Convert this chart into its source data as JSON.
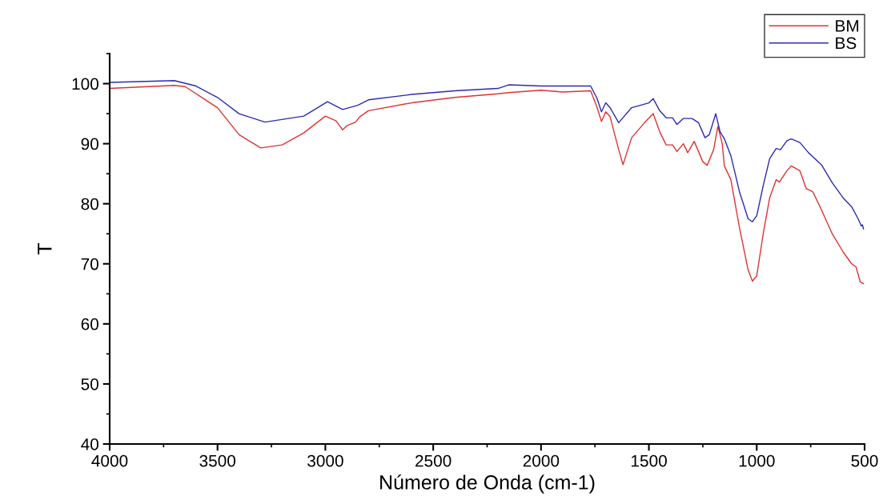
{
  "chart_data": {
    "type": "line",
    "xlabel": "Número de Onda (cm-1)",
    "ylabel": "T",
    "xlim": [
      4000,
      500
    ],
    "xticks": [
      4000,
      3500,
      3000,
      2500,
      2000,
      1500,
      1000,
      500
    ],
    "ylim": [
      40,
      105
    ],
    "yticks": [
      40,
      50,
      60,
      70,
      80,
      90,
      100
    ],
    "grid": false,
    "legend": "top right",
    "marker": "none",
    "line_style": "solid",
    "series": [
      {
        "name": "BM",
        "color": "#e03232",
        "x": [
          4000,
          3700,
          3650,
          3500,
          3400,
          3300,
          3200,
          3100,
          3000,
          2950,
          2920,
          2900,
          2860,
          2840,
          2800,
          2600,
          2400,
          2200,
          2150,
          2000,
          1900,
          1770,
          1740,
          1720,
          1700,
          1680,
          1640,
          1620,
          1580,
          1520,
          1480,
          1450,
          1420,
          1390,
          1370,
          1340,
          1320,
          1290,
          1250,
          1230,
          1200,
          1180,
          1160,
          1150,
          1120,
          1080,
          1040,
          1020,
          1000,
          970,
          940,
          910,
          895,
          860,
          840,
          800,
          770,
          740,
          700,
          650,
          600,
          560,
          540,
          520,
          505
        ],
        "values": [
          99.2,
          99.7,
          99.5,
          96,
          91.5,
          89.3,
          89.8,
          91.8,
          94.6,
          93.8,
          92.3,
          93,
          93.6,
          94.5,
          95.5,
          96.8,
          97.7,
          98.3,
          98.5,
          98.9,
          98.6,
          98.8,
          96,
          93.7,
          95.3,
          94.5,
          89,
          86.5,
          91,
          93.5,
          95,
          92,
          89.8,
          89.8,
          88.7,
          90,
          88.5,
          90.4,
          87,
          86.4,
          89,
          92.9,
          90,
          86.3,
          84,
          76,
          69,
          67.1,
          68,
          75,
          81,
          84,
          83.6,
          85.5,
          86.3,
          85.5,
          82.5,
          82,
          79,
          75,
          72,
          70,
          69.5,
          67,
          66.7
        ]
      },
      {
        "name": "BS",
        "color": "#2a2ab4",
        "x": [
          4000,
          3700,
          3600,
          3500,
          3400,
          3280,
          3100,
          2990,
          2920,
          2850,
          2800,
          2600,
          2400,
          2200,
          2150,
          2000,
          1770,
          1740,
          1720,
          1700,
          1680,
          1640,
          1580,
          1500,
          1480,
          1450,
          1420,
          1390,
          1370,
          1340,
          1300,
          1270,
          1240,
          1220,
          1190,
          1170,
          1150,
          1120,
          1080,
          1040,
          1020,
          1000,
          970,
          940,
          910,
          890,
          860,
          840,
          800,
          760,
          700,
          650,
          600,
          560,
          530,
          515,
          510,
          505
        ],
        "values": [
          100.2,
          100.5,
          99.6,
          97.7,
          95,
          93.6,
          94.6,
          97,
          95.7,
          96.4,
          97.3,
          98.2,
          98.8,
          99.2,
          99.8,
          99.6,
          99.6,
          97.5,
          95.3,
          96.8,
          96,
          93.5,
          96,
          96.8,
          97.5,
          95.5,
          94.3,
          94.3,
          93.2,
          94.2,
          94.2,
          93.5,
          91,
          91.5,
          95,
          92,
          90.8,
          88,
          82,
          77.5,
          77,
          78,
          83,
          87.5,
          89.2,
          89,
          90.5,
          90.8,
          90.2,
          88.5,
          86.5,
          83.5,
          81,
          79.5,
          77.5,
          76.3,
          76.5,
          75.8
        ]
      }
    ]
  }
}
